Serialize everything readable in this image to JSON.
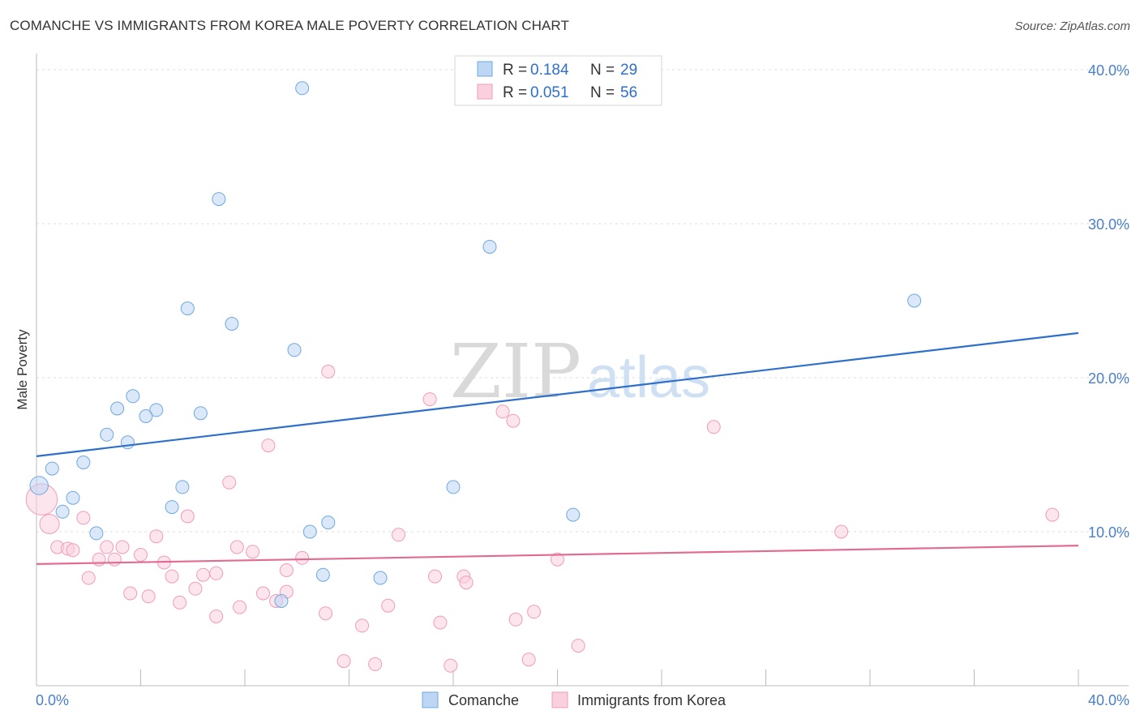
{
  "title": "COMANCHE VS IMMIGRANTS FROM KOREA MALE POVERTY CORRELATION CHART",
  "source": "Source: ZipAtlas.com",
  "watermark": {
    "zip": "ZIP",
    "atlas": "atlas"
  },
  "chart_data": {
    "type": "scatter",
    "ylabel": "Male Poverty",
    "xlabel": "",
    "xlim": [
      0,
      40
    ],
    "ylim": [
      0,
      40
    ],
    "x_tick_labels": [
      "0.0%",
      "40.0%"
    ],
    "y_tick_labels": [
      "10.0%",
      "20.0%",
      "30.0%",
      "40.0%"
    ],
    "y_ticks": [
      10,
      20,
      30,
      40
    ],
    "grid": "horizontal dashed",
    "legend_position": "top-center",
    "colors": {
      "comanche": "#6fa8e0",
      "comanche_line": "#2e6fcc",
      "korea": "#f19cb8",
      "korea_line": "#e26b92",
      "axis_label": "#4a7fcb"
    },
    "stats": [
      {
        "r_label": "R =",
        "r": "0.184",
        "n_label": "N =",
        "n": "29"
      },
      {
        "r_label": "R =",
        "r": "0.051",
        "n_label": "N =",
        "n": "56"
      }
    ],
    "series": [
      {
        "name": "Comanche",
        "trend": [
          [
            0,
            14.9
          ],
          [
            40,
            22.9
          ]
        ],
        "points": [
          [
            10.2,
            38.8
          ],
          [
            7.0,
            31.6
          ],
          [
            17.4,
            28.5
          ],
          [
            33.7,
            25.0
          ],
          [
            5.8,
            24.5
          ],
          [
            7.5,
            23.5
          ],
          [
            9.9,
            21.8
          ],
          [
            3.7,
            18.8
          ],
          [
            3.1,
            18.0
          ],
          [
            4.6,
            17.9
          ],
          [
            6.3,
            17.7
          ],
          [
            4.2,
            17.5
          ],
          [
            2.7,
            16.3
          ],
          [
            3.5,
            15.8
          ],
          [
            1.8,
            14.5
          ],
          [
            0.6,
            14.1
          ],
          [
            0.1,
            13.0
          ],
          [
            5.6,
            12.9
          ],
          [
            16.0,
            12.9
          ],
          [
            1.4,
            12.2
          ],
          [
            1.0,
            11.3
          ],
          [
            5.2,
            11.6
          ],
          [
            20.6,
            11.1
          ],
          [
            11.2,
            10.6
          ],
          [
            2.3,
            9.9
          ],
          [
            10.5,
            10.0
          ],
          [
            11.0,
            7.2
          ],
          [
            13.2,
            7.0
          ],
          [
            9.4,
            5.5
          ]
        ],
        "sizes": [
          1,
          1,
          1,
          1,
          1,
          1,
          1,
          1,
          1,
          1,
          1,
          1,
          1,
          1,
          1,
          1,
          1.4,
          1,
          1,
          1,
          1,
          1,
          1,
          1,
          1,
          1,
          1,
          1,
          1
        ]
      },
      {
        "name": "Immigrants from Korea",
        "trend": [
          [
            0,
            7.9
          ],
          [
            40,
            9.1
          ]
        ],
        "points": [
          [
            0.2,
            12.1
          ],
          [
            0.5,
            10.5
          ],
          [
            11.2,
            20.4
          ],
          [
            15.1,
            18.6
          ],
          [
            17.9,
            17.8
          ],
          [
            18.3,
            17.2
          ],
          [
            26.0,
            16.8
          ],
          [
            8.9,
            15.6
          ],
          [
            7.4,
            13.2
          ],
          [
            1.8,
            10.9
          ],
          [
            5.8,
            11.0
          ],
          [
            30.9,
            10.0
          ],
          [
            39.0,
            11.1
          ],
          [
            13.9,
            9.8
          ],
          [
            4.6,
            9.7
          ],
          [
            0.8,
            9.0
          ],
          [
            1.2,
            8.9
          ],
          [
            1.4,
            8.8
          ],
          [
            2.7,
            9.0
          ],
          [
            3.3,
            9.0
          ],
          [
            7.7,
            9.0
          ],
          [
            8.3,
            8.7
          ],
          [
            4.0,
            8.5
          ],
          [
            2.4,
            8.2
          ],
          [
            3.0,
            8.2
          ],
          [
            10.2,
            8.3
          ],
          [
            4.9,
            8.0
          ],
          [
            20.0,
            8.2
          ],
          [
            9.6,
            7.5
          ],
          [
            2.0,
            7.0
          ],
          [
            5.2,
            7.1
          ],
          [
            6.4,
            7.2
          ],
          [
            6.9,
            7.3
          ],
          [
            15.3,
            7.1
          ],
          [
            16.4,
            7.1
          ],
          [
            16.5,
            6.7
          ],
          [
            6.1,
            6.3
          ],
          [
            3.6,
            6.0
          ],
          [
            4.3,
            5.8
          ],
          [
            8.7,
            6.0
          ],
          [
            9.6,
            6.1
          ],
          [
            5.5,
            5.4
          ],
          [
            9.2,
            5.5
          ],
          [
            7.8,
            5.1
          ],
          [
            13.5,
            5.2
          ],
          [
            19.1,
            4.8
          ],
          [
            11.1,
            4.7
          ],
          [
            6.9,
            4.5
          ],
          [
            18.4,
            4.3
          ],
          [
            15.5,
            4.1
          ],
          [
            12.5,
            3.9
          ],
          [
            20.8,
            2.6
          ],
          [
            11.8,
            1.6
          ],
          [
            13.0,
            1.4
          ],
          [
            15.9,
            1.3
          ],
          [
            18.9,
            1.7
          ]
        ],
        "sizes": [
          2.4,
          1.5,
          1,
          1,
          1,
          1,
          1,
          1,
          1,
          1,
          1,
          1,
          1,
          1,
          1,
          1,
          1,
          1,
          1,
          1,
          1,
          1,
          1,
          1,
          1,
          1,
          1,
          1,
          1,
          1,
          1,
          1,
          1,
          1,
          1,
          1,
          1,
          1,
          1,
          1,
          1,
          1,
          1,
          1,
          1,
          1,
          1,
          1,
          1,
          1,
          1,
          1,
          1,
          1,
          1,
          1
        ]
      }
    ]
  }
}
